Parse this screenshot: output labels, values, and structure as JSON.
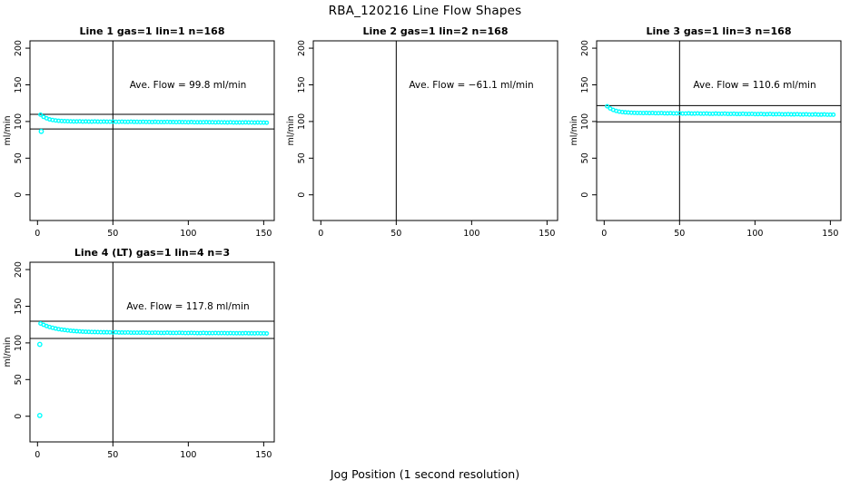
{
  "figure": {
    "title": "RBA_120216  Line Flow Shapes",
    "xlabel": "Jog Position (1 second resolution)"
  },
  "chart_data": {
    "type": "scatter",
    "title": "RBA_120216  Line Flow Shapes",
    "xlabel": "Jog Position (1 second resolution)",
    "ylabel": "ml/min",
    "point_color": "#00FFFF",
    "axis_color": "#000000",
    "legend": "none",
    "grid": false,
    "axes": {
      "xlim": [
        -5,
        157
      ],
      "ylim": [
        -35,
        210
      ],
      "xticks": [
        0,
        50,
        100,
        150
      ],
      "yticks": [
        0,
        50,
        100,
        150,
        200
      ]
    },
    "panels": [
      {
        "title": "Line 1 gas=1 lin=1 n=168",
        "annotation": "Ave. Flow =  99.8  ml/min",
        "ave_flow_ml_min": 99.8,
        "n": 168,
        "vline_x": 50,
        "hlines": [
          109.8,
          89.8
        ],
        "series": {
          "x_start": 2,
          "x_step": 2,
          "y": [
            109.3,
            106.3,
            104.4,
            102.9,
            102.0,
            101.4,
            101.0,
            100.7,
            100.5,
            100.3,
            100.2,
            100.1,
            100.0,
            100.2,
            99.9,
            100.1,
            99.9,
            99.8,
            100.0,
            99.8,
            99.7,
            99.9,
            99.7,
            99.7,
            99.8,
            99.6,
            99.6,
            99.7,
            99.6,
            99.5,
            99.7,
            99.5,
            99.5,
            99.4,
            99.6,
            99.4,
            99.4,
            99.3,
            99.5,
            99.3,
            99.3,
            99.2,
            99.4,
            99.2,
            99.2,
            99.1,
            99.3,
            99.1,
            99.1,
            99.0,
            99.2,
            99.0,
            99.0,
            99.0,
            98.9,
            99.1,
            98.9,
            98.9,
            98.8,
            99.0,
            98.8,
            98.8,
            98.7,
            98.9,
            98.7,
            98.7,
            98.7,
            98.6,
            98.8,
            98.6,
            98.6,
            98.5,
            98.7,
            98.5,
            98.5,
            98.4
          ]
        },
        "outliers": [
          [
            2.5,
            86.5
          ]
        ]
      },
      {
        "title": "Line 2 gas=1 lin=2 n=168",
        "annotation": "Ave. Flow =  −61.1  ml/min",
        "ave_flow_ml_min": -61.1,
        "n": 168,
        "vline_x": 50,
        "hlines": [],
        "series": {
          "x_start": 2,
          "x_step": 2,
          "y": []
        },
        "outliers": []
      },
      {
        "title": "Line 3 gas=1 lin=3 n=168",
        "annotation": "Ave. Flow =  110.6  ml/min",
        "ave_flow_ml_min": 110.6,
        "n": 168,
        "vline_x": 50,
        "hlines": [
          121.7,
          99.5
        ],
        "series": {
          "x_start": 2,
          "x_step": 2,
          "y": [
            120.8,
            117.8,
            115.8,
            114.4,
            113.5,
            112.9,
            112.5,
            112.2,
            112.0,
            111.8,
            111.7,
            111.6,
            111.5,
            111.7,
            111.4,
            111.6,
            111.3,
            111.3,
            111.5,
            111.2,
            111.1,
            111.3,
            111.0,
            111.0,
            111.2,
            110.9,
            110.9,
            111.1,
            110.8,
            110.8,
            111.0,
            110.7,
            110.7,
            110.9,
            110.6,
            110.6,
            110.8,
            110.5,
            110.5,
            110.7,
            110.4,
            110.4,
            110.6,
            110.3,
            110.3,
            110.5,
            110.2,
            110.2,
            110.4,
            110.1,
            110.1,
            110.3,
            110.0,
            110.0,
            110.2,
            109.9,
            109.9,
            110.1,
            109.8,
            109.8,
            110.0,
            109.7,
            109.7,
            109.9,
            109.6,
            109.6,
            109.8,
            109.5,
            109.5,
            109.7,
            109.4,
            109.4,
            109.6,
            109.3,
            109.3,
            109.3
          ]
        },
        "outliers": []
      },
      {
        "title": "Line 4 (LT) gas=1 lin=4 n=3",
        "annotation": "Ave. Flow =  117.8  ml/min",
        "ave_flow_ml_min": 117.8,
        "n": 3,
        "vline_x": 50,
        "hlines": [
          129.6,
          106.0
        ],
        "series": {
          "x_start": 2,
          "x_step": 2,
          "y": [
            126.5,
            124.7,
            123.0,
            121.7,
            120.6,
            119.6,
            118.8,
            118.2,
            117.6,
            117.0,
            116.6,
            116.2,
            115.9,
            115.7,
            115.4,
            115.2,
            115.1,
            114.9,
            114.8,
            114.7,
            114.6,
            114.5,
            114.5,
            114.4,
            114.3,
            114.5,
            114.2,
            114.2,
            114.1,
            114.3,
            114.0,
            114.0,
            114.0,
            113.9,
            114.1,
            113.9,
            113.8,
            113.8,
            114.0,
            113.8,
            113.7,
            113.7,
            113.9,
            113.7,
            113.6,
            113.6,
            113.8,
            113.6,
            113.5,
            113.5,
            113.7,
            113.5,
            113.4,
            113.4,
            113.6,
            113.4,
            113.4,
            113.3,
            113.5,
            113.3,
            113.3,
            113.3,
            113.2,
            113.4,
            113.2,
            113.2,
            113.2,
            113.1,
            113.3,
            113.1,
            113.1,
            113.0,
            113.2,
            113.0,
            113.0,
            112.9
          ]
        },
        "outliers": [
          [
            1.5,
            98.0
          ],
          [
            1.5,
            1.0
          ]
        ]
      }
    ]
  }
}
